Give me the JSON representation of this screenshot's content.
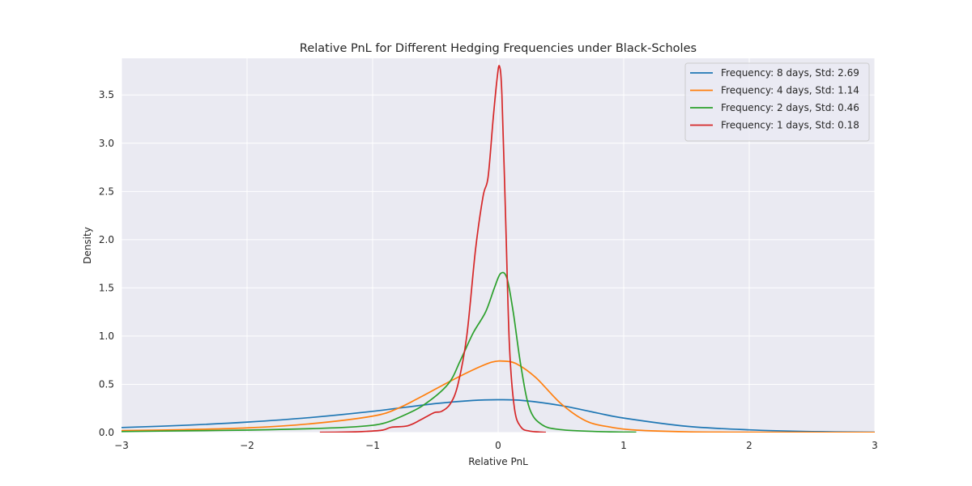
{
  "chart_data": {
    "type": "line",
    "title": "Relative PnL for Different Hedging Frequencies under Black-Scholes",
    "xlabel": "Relative PnL",
    "ylabel": "Density",
    "xlim": [
      -3,
      3
    ],
    "ylim": [
      0,
      3.88
    ],
    "xticks": [
      -3,
      -2,
      -1,
      0,
      1,
      2,
      3
    ],
    "xtick_labels": [
      "−3",
      "−2",
      "−1",
      "0",
      "1",
      "2",
      "3"
    ],
    "yticks": [
      0,
      0.5,
      1,
      1.5,
      2,
      2.5,
      3,
      3.5
    ],
    "ytick_labels": [
      "0.0",
      "0.5",
      "1.0",
      "1.5",
      "2.0",
      "2.5",
      "3.0",
      "3.5"
    ],
    "grid": true,
    "legend_position": "top-right",
    "background": "#eaeaf2",
    "series": [
      {
        "name": "Frequency: 8 days, Std: 2.69",
        "color": "#1f77b4",
        "points": [
          [
            -3,
            0.052
          ],
          [
            -2.5,
            0.075
          ],
          [
            -2,
            0.108
          ],
          [
            -1.5,
            0.155
          ],
          [
            -1,
            0.22
          ],
          [
            -0.5,
            0.3
          ],
          [
            -0.2,
            0.333
          ],
          [
            0,
            0.34
          ],
          [
            0.2,
            0.332
          ],
          [
            0.5,
            0.28
          ],
          [
            0.8,
            0.2
          ],
          [
            1,
            0.15
          ],
          [
            1.5,
            0.065
          ],
          [
            2,
            0.028
          ],
          [
            2.5,
            0.01
          ],
          [
            3,
            0.003
          ]
        ]
      },
      {
        "name": "Frequency: 4 days, Std: 1.14",
        "color": "#ff7f0e",
        "points": [
          [
            -3,
            0.02
          ],
          [
            -2.5,
            0.03
          ],
          [
            -2,
            0.048
          ],
          [
            -1.5,
            0.09
          ],
          [
            -1,
            0.17
          ],
          [
            -0.8,
            0.25
          ],
          [
            -0.6,
            0.38
          ],
          [
            -0.4,
            0.52
          ],
          [
            -0.2,
            0.65
          ],
          [
            -0.05,
            0.73
          ],
          [
            0.05,
            0.74
          ],
          [
            0.15,
            0.71
          ],
          [
            0.3,
            0.57
          ],
          [
            0.5,
            0.3
          ],
          [
            0.7,
            0.12
          ],
          [
            0.9,
            0.055
          ],
          [
            1.1,
            0.025
          ],
          [
            1.5,
            0.008
          ],
          [
            2,
            0.003
          ],
          [
            3,
            0.001
          ]
        ]
      },
      {
        "name": "Frequency: 2 days, Std: 0.46",
        "color": "#2ca02c",
        "points": [
          [
            -3,
            0.01
          ],
          [
            -2.5,
            0.018
          ],
          [
            -2,
            0.025
          ],
          [
            -1.5,
            0.04
          ],
          [
            -1.2,
            0.055
          ],
          [
            -1,
            0.075
          ],
          [
            -0.9,
            0.1
          ],
          [
            -0.8,
            0.15
          ],
          [
            -0.6,
            0.28
          ],
          [
            -0.4,
            0.5
          ],
          [
            -0.3,
            0.75
          ],
          [
            -0.2,
            1.03
          ],
          [
            -0.1,
            1.25
          ],
          [
            -0.03,
            1.5
          ],
          [
            0.02,
            1.65
          ],
          [
            0.07,
            1.6
          ],
          [
            0.12,
            1.25
          ],
          [
            0.18,
            0.7
          ],
          [
            0.25,
            0.25
          ],
          [
            0.35,
            0.08
          ],
          [
            0.5,
            0.03
          ],
          [
            0.8,
            0.01
          ],
          [
            1.1,
            0.003
          ]
        ]
      },
      {
        "name": "Frequency: 1 days, Std: 0.18",
        "color": "#d62728",
        "points": [
          [
            -1.42,
            0.002
          ],
          [
            -1.2,
            0.005
          ],
          [
            -1.05,
            0.012
          ],
          [
            -0.92,
            0.025
          ],
          [
            -0.85,
            0.055
          ],
          [
            -0.72,
            0.07
          ],
          [
            -0.62,
            0.13
          ],
          [
            -0.55,
            0.18
          ],
          [
            -0.5,
            0.21
          ],
          [
            -0.45,
            0.22
          ],
          [
            -0.38,
            0.3
          ],
          [
            -0.32,
            0.5
          ],
          [
            -0.25,
            1.0
          ],
          [
            -0.18,
            1.9
          ],
          [
            -0.12,
            2.45
          ],
          [
            -0.08,
            2.65
          ],
          [
            -0.04,
            3.25
          ],
          [
            -0.01,
            3.65
          ],
          [
            0.01,
            3.8
          ],
          [
            0.03,
            3.5
          ],
          [
            0.06,
            2.2
          ],
          [
            0.09,
            0.9
          ],
          [
            0.13,
            0.25
          ],
          [
            0.18,
            0.06
          ],
          [
            0.25,
            0.015
          ],
          [
            0.38,
            0.002
          ]
        ]
      }
    ]
  }
}
